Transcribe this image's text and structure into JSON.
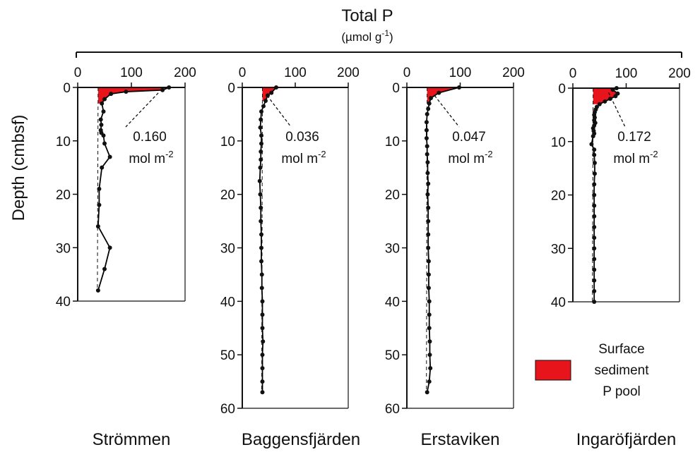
{
  "chart_data": {
    "type": "line",
    "title": "Total P",
    "unit_parts": [
      "(µmol g",
      "-1",
      ")"
    ],
    "ylabel": "Depth (cmbsf)",
    "xlim": [
      0,
      200
    ],
    "x_ticks": [
      0,
      100,
      200
    ],
    "x_tick_labels": [
      "0",
      "100",
      "200"
    ],
    "baseline_x": 38,
    "colors": {
      "pool_fill": "#e8141c",
      "line": "#000000"
    },
    "legend": {
      "label_lines": [
        "Surface",
        "sediment",
        "P pool"
      ],
      "placement": "bottom-right"
    },
    "panels": [
      {
        "name": "Strömmen",
        "ylim": [
          0,
          40
        ],
        "y_ticks": [
          0,
          10,
          20,
          30,
          40
        ],
        "y_tick_labels": [
          "0",
          "10",
          "20",
          "30",
          "40"
        ],
        "pool_value": "0.160",
        "pool_unit_parts": [
          "mol m",
          "-2"
        ],
        "points": [
          [
            170,
            0
          ],
          [
            158,
            0.5
          ],
          [
            90,
            0.8
          ],
          [
            62,
            1.2
          ],
          [
            50,
            2.2
          ],
          [
            45,
            3
          ],
          [
            48,
            4.5
          ],
          [
            43,
            6
          ],
          [
            44,
            7
          ],
          [
            43,
            8
          ],
          [
            44,
            8.5
          ],
          [
            48,
            9
          ],
          [
            50,
            10.5
          ],
          [
            60,
            13
          ],
          [
            45,
            15
          ],
          [
            40,
            19
          ],
          [
            40,
            22
          ],
          [
            38,
            26
          ],
          [
            60,
            30
          ],
          [
            50,
            34
          ],
          [
            38,
            38
          ]
        ]
      },
      {
        "name": "Baggensfjärden",
        "ylim": [
          0,
          60
        ],
        "y_ticks": [
          0,
          10,
          20,
          30,
          40,
          50,
          60
        ],
        "y_tick_labels": [
          "0",
          "10",
          "20",
          "30",
          "40",
          "50",
          "60"
        ],
        "pool_value": "0.036",
        "pool_unit_parts": [
          "mol m",
          "-2"
        ],
        "points": [
          [
            64,
            0
          ],
          [
            55,
            1
          ],
          [
            48,
            1.5
          ],
          [
            44,
            2.5
          ],
          [
            40,
            3.5
          ],
          [
            36,
            4.5
          ],
          [
            35,
            6
          ],
          [
            34,
            7.5
          ],
          [
            36,
            9
          ],
          [
            36,
            10.5
          ],
          [
            35,
            12
          ],
          [
            35,
            13.5
          ],
          [
            34,
            15
          ],
          [
            33,
            17.5
          ],
          [
            34,
            20
          ],
          [
            35,
            22.5
          ],
          [
            35,
            25
          ],
          [
            36,
            27.5
          ],
          [
            36,
            30
          ],
          [
            36,
            32.5
          ],
          [
            37,
            35
          ],
          [
            37,
            37.5
          ],
          [
            38,
            40
          ],
          [
            38,
            42.5
          ],
          [
            38,
            45
          ],
          [
            39,
            47.5
          ],
          [
            38,
            50
          ],
          [
            38,
            52.5
          ],
          [
            38,
            55
          ],
          [
            38,
            57
          ]
        ]
      },
      {
        "name": "Erstaviken",
        "ylim": [
          0,
          60
        ],
        "y_ticks": [
          0,
          10,
          20,
          30,
          40,
          50,
          60
        ],
        "y_tick_labels": [
          "0",
          "10",
          "20",
          "30",
          "40",
          "50",
          "60"
        ],
        "pool_value": "0.047",
        "pool_unit_parts": [
          "mol m",
          "-2"
        ],
        "points": [
          [
            98,
            0
          ],
          [
            60,
            1
          ],
          [
            45,
            2
          ],
          [
            42,
            3
          ],
          [
            40,
            4
          ],
          [
            38,
            5
          ],
          [
            37,
            6.5
          ],
          [
            37,
            8
          ],
          [
            37,
            9.5
          ],
          [
            38,
            11
          ],
          [
            38,
            12.5
          ],
          [
            39,
            14
          ],
          [
            39,
            16
          ],
          [
            40,
            18
          ],
          [
            39,
            20
          ],
          [
            40,
            22.5
          ],
          [
            40,
            25
          ],
          [
            40,
            27.5
          ],
          [
            40,
            30
          ],
          [
            41,
            32.5
          ],
          [
            41,
            35
          ],
          [
            41,
            37.5
          ],
          [
            42,
            40
          ],
          [
            42,
            42.5
          ],
          [
            42,
            45
          ],
          [
            43,
            47.5
          ],
          [
            43,
            50
          ],
          [
            44,
            52.5
          ],
          [
            42,
            55
          ],
          [
            38,
            57
          ]
        ]
      },
      {
        "name": "Ingaröfjärden",
        "ylim": [
          0,
          40
        ],
        "y_ticks": [
          0,
          10,
          20,
          30,
          40
        ],
        "y_tick_labels": [
          "0",
          "10",
          "20",
          "30",
          "40"
        ],
        "pool_value": "0.172",
        "pool_unit_parts": [
          "mol m",
          "-2"
        ],
        "points": [
          [
            82,
            0
          ],
          [
            75,
            0.3
          ],
          [
            84,
            1
          ],
          [
            80,
            1.5
          ],
          [
            70,
            2
          ],
          [
            60,
            2.5
          ],
          [
            50,
            3
          ],
          [
            45,
            3.5
          ],
          [
            43,
            4
          ],
          [
            41,
            4.5
          ],
          [
            40,
            5
          ],
          [
            41,
            5.5
          ],
          [
            40,
            6
          ],
          [
            42,
            6.5
          ],
          [
            40,
            7
          ],
          [
            38,
            7.5
          ],
          [
            39,
            8
          ],
          [
            40,
            8.5
          ],
          [
            38,
            9
          ],
          [
            35,
            10.5
          ],
          [
            40,
            11.5
          ],
          [
            40,
            12.5
          ],
          [
            41,
            14
          ],
          [
            41,
            16
          ],
          [
            40,
            18
          ],
          [
            40,
            20
          ],
          [
            40,
            22
          ],
          [
            40,
            24
          ],
          [
            40,
            26
          ],
          [
            40,
            28
          ],
          [
            40,
            30
          ],
          [
            40,
            32
          ],
          [
            40,
            34
          ],
          [
            40,
            36
          ],
          [
            40,
            38
          ],
          [
            40,
            40
          ]
        ]
      }
    ]
  }
}
